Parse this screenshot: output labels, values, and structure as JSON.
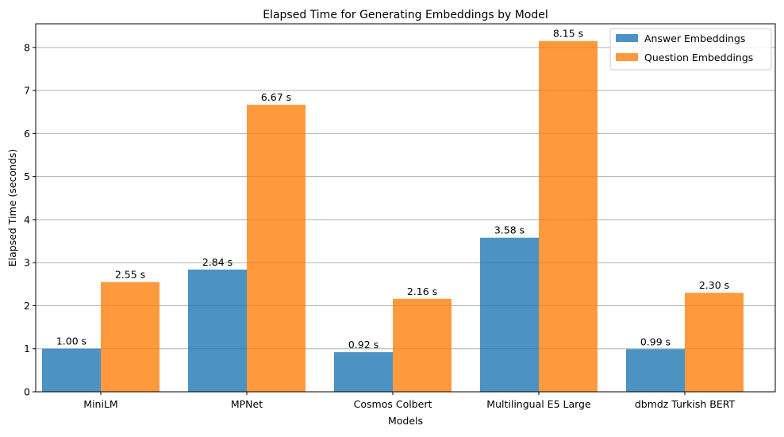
{
  "chart_data": {
    "type": "bar",
    "title": "Elapsed Time for Generating Embeddings by Model",
    "xlabel": "Models",
    "ylabel": "Elapsed Time (seconds)",
    "ylim": [
      0,
      8.55
    ],
    "yticks": [
      "0",
      "1",
      "2",
      "3",
      "4",
      "5",
      "6",
      "7",
      "8"
    ],
    "grid": "horizontal",
    "legend_position": "top-right",
    "categories": [
      "MiniLM",
      "MPNet",
      "Cosmos Colbert",
      "Multilingual E5 Large",
      "dbmdz Turkish BERT"
    ],
    "series": [
      {
        "name": "Answer Embeddings",
        "color": "#1f77b4",
        "values": [
          1.0,
          2.84,
          0.92,
          3.58,
          0.99
        ],
        "labels": [
          "1.00 s",
          "2.84 s",
          "0.92 s",
          "3.58 s",
          "0.99 s"
        ]
      },
      {
        "name": "Question Embeddings",
        "color": "#ff7f0e",
        "values": [
          2.55,
          6.67,
          2.16,
          8.15,
          2.3
        ],
        "labels": [
          "2.55 s",
          "6.67 s",
          "2.16 s",
          "8.15 s",
          "2.30 s"
        ]
      }
    ]
  }
}
